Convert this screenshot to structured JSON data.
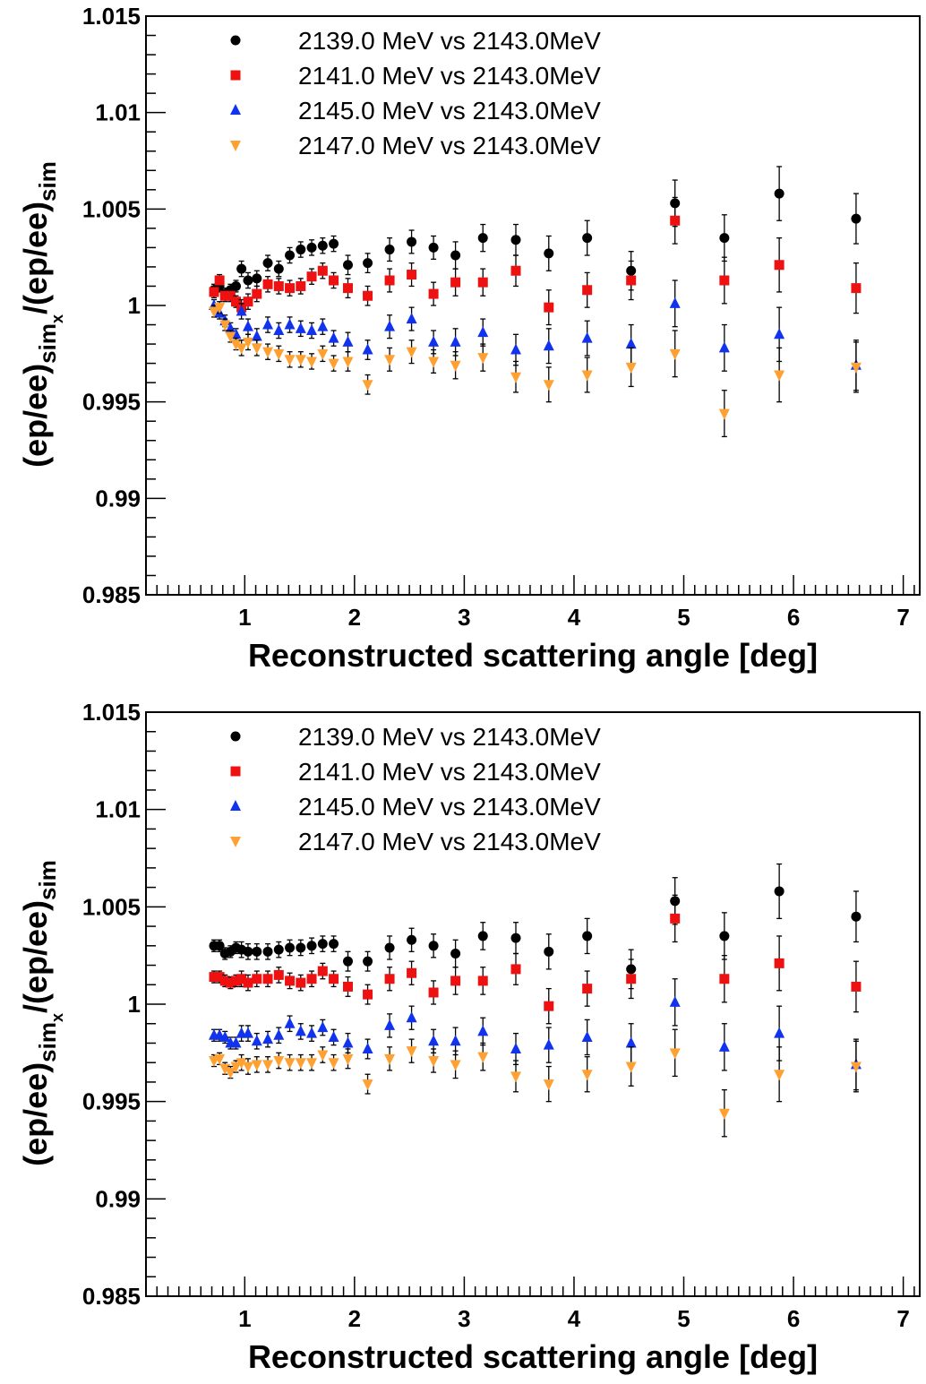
{
  "chart_data": [
    {
      "type": "scatter",
      "xlabel": "Reconstructed scattering angle [deg]",
      "ylabel": "(ep/ee)simx/(ep/ee)sim",
      "xlim": [
        0.1,
        7.15
      ],
      "ylim": [
        0.985,
        1.015
      ],
      "x_ticks": [
        "1",
        "2",
        "3",
        "4",
        "5",
        "6",
        "7"
      ],
      "y_ticks": [
        "0.985",
        "0.99",
        "0.995",
        "1",
        "1.005",
        "1.01",
        "1.015"
      ],
      "legend_position": "top-left",
      "series": [
        {
          "name": "2139.0 MeV vs 2143.0MeV",
          "color": "#000000",
          "marker": "circle",
          "x": [
            0.72,
            0.77,
            0.82,
            0.87,
            0.92,
            0.97,
            1.03,
            1.11,
            1.21,
            1.31,
            1.41,
            1.51,
            1.61,
            1.71,
            1.81,
            1.94,
            2.12,
            2.32,
            2.52,
            2.72,
            2.92,
            3.17,
            3.47,
            3.77,
            4.12,
            4.52,
            4.92,
            5.37,
            5.87,
            6.57
          ],
          "y": [
            1.0008,
            1.001,
            1.0006,
            1.0008,
            1.001,
            1.0019,
            1.0013,
            1.0014,
            1.0022,
            1.0019,
            1.0026,
            1.0029,
            1.003,
            1.0031,
            1.0032,
            1.0021,
            1.0022,
            1.0029,
            1.0033,
            1.003,
            1.0026,
            1.0035,
            1.0034,
            1.0027,
            1.0035,
            1.0018,
            1.0053,
            1.0035,
            1.0058,
            1.0045
          ],
          "err": [
            0.0003,
            0.0003,
            0.0003,
            0.0003,
            0.0003,
            0.0004,
            0.0004,
            0.0004,
            0.0004,
            0.0004,
            0.0004,
            0.0004,
            0.0004,
            0.0004,
            0.0004,
            0.0005,
            0.0005,
            0.0006,
            0.0006,
            0.0006,
            0.0007,
            0.0007,
            0.0008,
            0.0009,
            0.0009,
            0.001,
            0.0012,
            0.0012,
            0.0014,
            0.0013
          ]
        },
        {
          "name": "2141.0 MeV vs 2143.0MeV",
          "color": "#ee1111",
          "marker": "square",
          "x": [
            0.72,
            0.77,
            0.82,
            0.87,
            0.92,
            0.97,
            1.03,
            1.11,
            1.21,
            1.31,
            1.41,
            1.51,
            1.61,
            1.71,
            1.81,
            1.94,
            2.12,
            2.32,
            2.52,
            2.72,
            2.92,
            3.17,
            3.47,
            3.77,
            4.12,
            4.52,
            4.92,
            5.37,
            5.87,
            6.57
          ],
          "y": [
            1.0007,
            1.0013,
            1.0005,
            1.0005,
            1.0002,
            0.9999,
            1.0002,
            1.0006,
            1.0011,
            1.001,
            1.0009,
            1.001,
            1.0015,
            1.0018,
            1.0013,
            1.0009,
            1.0005,
            1.0013,
            1.0016,
            1.0006,
            1.0012,
            1.0012,
            1.0018,
            0.9999,
            1.0008,
            1.0013,
            1.0044,
            1.0013,
            1.0021,
            1.0009
          ],
          "err": [
            0.0003,
            0.0003,
            0.0003,
            0.0003,
            0.0003,
            0.0004,
            0.0004,
            0.0004,
            0.0004,
            0.0004,
            0.0004,
            0.0004,
            0.0004,
            0.0004,
            0.0004,
            0.0005,
            0.0005,
            0.0006,
            0.0006,
            0.0006,
            0.0007,
            0.0007,
            0.0008,
            0.0009,
            0.0009,
            0.001,
            0.0012,
            0.0012,
            0.0014,
            0.0013
          ]
        },
        {
          "name": "2145.0 MeV vs 2143.0MeV",
          "color": "#1133ee",
          "marker": "triangle-up",
          "x": [
            0.72,
            0.77,
            0.82,
            0.87,
            0.92,
            0.97,
            1.03,
            1.11,
            1.21,
            1.31,
            1.41,
            1.51,
            1.61,
            1.71,
            1.81,
            1.94,
            2.12,
            2.32,
            2.52,
            2.72,
            2.92,
            3.17,
            3.47,
            3.77,
            4.12,
            4.52,
            4.92,
            5.37,
            5.87,
            6.57
          ],
          "y": [
            1.0,
            0.9996,
            0.9992,
            0.9988,
            0.9985,
            0.9997,
            0.9989,
            0.9984,
            0.999,
            0.9987,
            0.999,
            0.9988,
            0.9987,
            0.9989,
            0.9983,
            0.9981,
            0.9977,
            0.9989,
            0.9993,
            0.9981,
            0.9981,
            0.9986,
            0.9977,
            0.9979,
            0.9983,
            0.998,
            1.0001,
            0.9978,
            0.9985,
            0.9969
          ],
          "err": [
            0.0003,
            0.0003,
            0.0003,
            0.0003,
            0.0003,
            0.0004,
            0.0004,
            0.0004,
            0.0004,
            0.0004,
            0.0004,
            0.0004,
            0.0004,
            0.0004,
            0.0004,
            0.0005,
            0.0005,
            0.0006,
            0.0006,
            0.0006,
            0.0007,
            0.0007,
            0.0008,
            0.0009,
            0.0009,
            0.001,
            0.0012,
            0.0012,
            0.0014,
            0.0013
          ]
        },
        {
          "name": "2147.0 MeV vs 2143.0MeV",
          "color": "#ffa032",
          "marker": "triangle-down",
          "x": [
            0.72,
            0.77,
            0.82,
            0.87,
            0.92,
            0.97,
            1.03,
            1.11,
            1.21,
            1.31,
            1.41,
            1.51,
            1.61,
            1.71,
            1.81,
            1.94,
            2.12,
            2.32,
            2.52,
            2.72,
            2.92,
            3.17,
            3.47,
            3.77,
            4.12,
            4.52,
            4.92,
            5.37,
            5.87,
            6.57
          ],
          "y": [
            0.9997,
            0.9999,
            0.999,
            0.9984,
            0.998,
            0.9978,
            0.9981,
            0.9978,
            0.9976,
            0.9975,
            0.9972,
            0.9972,
            0.9971,
            0.9975,
            0.997,
            0.9971,
            0.9959,
            0.9972,
            0.9976,
            0.9971,
            0.9969,
            0.9973,
            0.9963,
            0.9959,
            0.9964,
            0.9968,
            0.9975,
            0.9944,
            0.9964,
            0.9968
          ],
          "err": [
            0.0003,
            0.0003,
            0.0003,
            0.0003,
            0.0003,
            0.0004,
            0.0004,
            0.0004,
            0.0004,
            0.0004,
            0.0004,
            0.0004,
            0.0004,
            0.0004,
            0.0004,
            0.0005,
            0.0005,
            0.0006,
            0.0006,
            0.0006,
            0.0007,
            0.0007,
            0.0008,
            0.0009,
            0.0009,
            0.001,
            0.0012,
            0.0012,
            0.0014,
            0.0013
          ]
        }
      ]
    },
    {
      "type": "scatter",
      "xlabel": "Reconstructed scattering angle [deg]",
      "ylabel": "(ep/ee)simx/(ep/ee)sim",
      "xlim": [
        0.1,
        7.15
      ],
      "ylim": [
        0.985,
        1.015
      ],
      "x_ticks": [
        "1",
        "2",
        "3",
        "4",
        "5",
        "6",
        "7"
      ],
      "y_ticks": [
        "0.985",
        "0.99",
        "0.995",
        "1",
        "1.005",
        "1.01",
        "1.015"
      ],
      "legend_position": "top-left",
      "series": [
        {
          "name": "2139.0 MeV vs 2143.0MeV",
          "color": "#000000",
          "marker": "circle",
          "x": [
            0.72,
            0.77,
            0.82,
            0.87,
            0.92,
            0.97,
            1.03,
            1.11,
            1.21,
            1.31,
            1.41,
            1.51,
            1.61,
            1.71,
            1.81,
            1.94,
            2.12,
            2.32,
            2.52,
            2.72,
            2.92,
            3.17,
            3.47,
            3.77,
            4.12,
            4.52,
            4.92,
            5.37,
            5.87,
            6.57
          ],
          "y": [
            1.003,
            1.003,
            1.0026,
            1.0027,
            1.0029,
            1.0028,
            1.0027,
            1.0027,
            1.0027,
            1.0028,
            1.0029,
            1.0029,
            1.003,
            1.0031,
            1.0031,
            1.0022,
            1.0022,
            1.0029,
            1.0033,
            1.003,
            1.0026,
            1.0035,
            1.0034,
            1.0027,
            1.0035,
            1.0018,
            1.0053,
            1.0035,
            1.0058,
            1.0045
          ],
          "err": [
            0.0003,
            0.0003,
            0.0003,
            0.0003,
            0.0003,
            0.0004,
            0.0004,
            0.0004,
            0.0004,
            0.0004,
            0.0004,
            0.0004,
            0.0004,
            0.0004,
            0.0004,
            0.0005,
            0.0005,
            0.0006,
            0.0006,
            0.0006,
            0.0007,
            0.0007,
            0.0008,
            0.0009,
            0.0009,
            0.001,
            0.0012,
            0.0012,
            0.0014,
            0.0013
          ]
        },
        {
          "name": "2141.0 MeV vs 2143.0MeV",
          "color": "#ee1111",
          "marker": "square",
          "x": [
            0.72,
            0.77,
            0.82,
            0.87,
            0.92,
            0.97,
            1.03,
            1.11,
            1.21,
            1.31,
            1.41,
            1.51,
            1.61,
            1.71,
            1.81,
            1.94,
            2.12,
            2.32,
            2.52,
            2.72,
            2.92,
            3.17,
            3.47,
            3.77,
            4.12,
            4.52,
            4.92,
            5.37,
            5.87,
            6.57
          ],
          "y": [
            1.0014,
            1.0014,
            1.0012,
            1.0011,
            1.0012,
            1.0013,
            1.0011,
            1.0013,
            1.0013,
            1.0015,
            1.0012,
            1.0011,
            1.0013,
            1.0017,
            1.0013,
            1.0009,
            1.0005,
            1.0013,
            1.0016,
            1.0006,
            1.0012,
            1.0012,
            1.0018,
            0.9999,
            1.0008,
            1.0013,
            1.0044,
            1.0013,
            1.0021,
            1.0009
          ],
          "err": [
            0.0003,
            0.0003,
            0.0003,
            0.0003,
            0.0003,
            0.0004,
            0.0004,
            0.0004,
            0.0004,
            0.0004,
            0.0004,
            0.0004,
            0.0004,
            0.0004,
            0.0004,
            0.0005,
            0.0005,
            0.0006,
            0.0006,
            0.0006,
            0.0007,
            0.0007,
            0.0008,
            0.0009,
            0.0009,
            0.001,
            0.0012,
            0.0012,
            0.0014,
            0.0013
          ]
        },
        {
          "name": "2145.0 MeV vs 2143.0MeV",
          "color": "#1133ee",
          "marker": "triangle-up",
          "x": [
            0.72,
            0.77,
            0.82,
            0.87,
            0.92,
            0.97,
            1.03,
            1.11,
            1.21,
            1.31,
            1.41,
            1.51,
            1.61,
            1.71,
            1.81,
            1.94,
            2.12,
            2.32,
            2.52,
            2.72,
            2.92,
            3.17,
            3.47,
            3.77,
            4.12,
            4.52,
            4.92,
            5.37,
            5.87,
            6.57
          ],
          "y": [
            0.9984,
            0.9984,
            0.9983,
            0.998,
            0.998,
            0.9985,
            0.9985,
            0.9981,
            0.9982,
            0.9984,
            0.999,
            0.9986,
            0.9985,
            0.9988,
            0.9983,
            0.998,
            0.9977,
            0.9989,
            0.9993,
            0.9981,
            0.9981,
            0.9986,
            0.9977,
            0.9979,
            0.9983,
            0.998,
            1.0001,
            0.9978,
            0.9985,
            0.9969
          ],
          "err": [
            0.0003,
            0.0003,
            0.0003,
            0.0003,
            0.0003,
            0.0004,
            0.0004,
            0.0004,
            0.0004,
            0.0004,
            0.0004,
            0.0004,
            0.0004,
            0.0004,
            0.0004,
            0.0005,
            0.0005,
            0.0006,
            0.0006,
            0.0006,
            0.0007,
            0.0007,
            0.0008,
            0.0009,
            0.0009,
            0.001,
            0.0012,
            0.0012,
            0.0014,
            0.0013
          ]
        },
        {
          "name": "2147.0 MeV vs 2143.0MeV",
          "color": "#ffa032",
          "marker": "triangle-down",
          "x": [
            0.72,
            0.77,
            0.82,
            0.87,
            0.92,
            0.97,
            1.03,
            1.11,
            1.21,
            1.31,
            1.41,
            1.51,
            1.61,
            1.71,
            1.81,
            1.94,
            2.12,
            2.32,
            2.52,
            2.72,
            2.92,
            3.17,
            3.47,
            3.77,
            4.12,
            4.52,
            4.92,
            5.37,
            5.87,
            6.57
          ],
          "y": [
            0.9971,
            0.9972,
            0.9967,
            0.9965,
            0.9968,
            0.997,
            0.9968,
            0.9969,
            0.9969,
            0.9971,
            0.997,
            0.997,
            0.997,
            0.9974,
            0.997,
            0.9972,
            0.9959,
            0.9972,
            0.9976,
            0.9971,
            0.9969,
            0.9973,
            0.9963,
            0.9959,
            0.9964,
            0.9968,
            0.9975,
            0.9944,
            0.9964,
            0.9968
          ],
          "err": [
            0.0003,
            0.0003,
            0.0003,
            0.0003,
            0.0003,
            0.0004,
            0.0004,
            0.0004,
            0.0004,
            0.0004,
            0.0004,
            0.0004,
            0.0004,
            0.0004,
            0.0004,
            0.0005,
            0.0005,
            0.0006,
            0.0006,
            0.0006,
            0.0007,
            0.0007,
            0.0008,
            0.0009,
            0.0009,
            0.001,
            0.0012,
            0.0012,
            0.0014,
            0.0013
          ]
        }
      ]
    }
  ],
  "ylabel_parts": {
    "base": "(ep/ee)",
    "sub1": "sim",
    "subsub": "x",
    "slash": "/(ep/ee)",
    "sub2": "sim"
  }
}
